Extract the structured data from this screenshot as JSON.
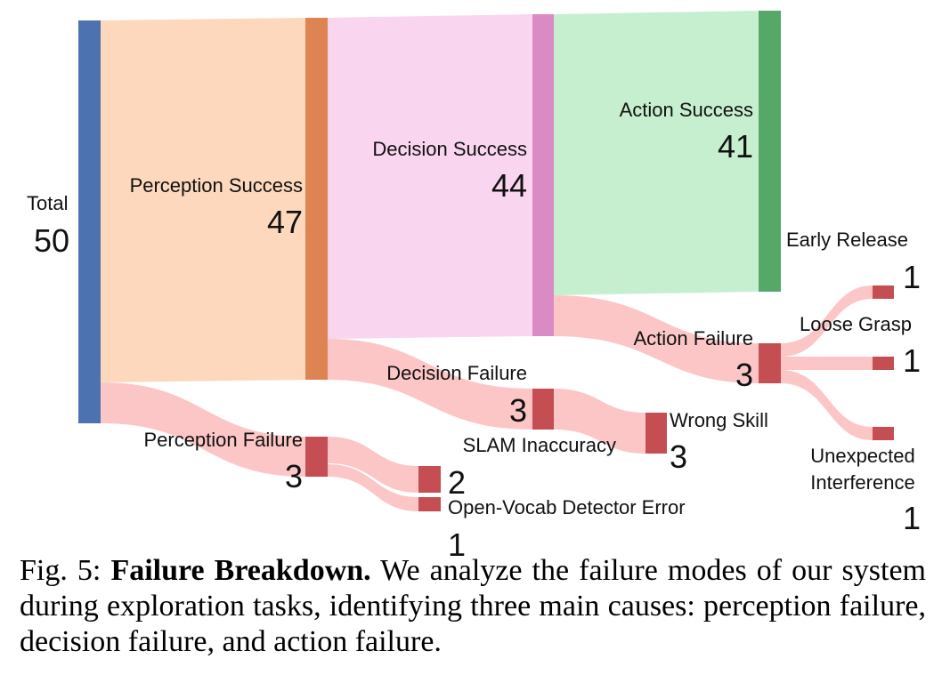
{
  "colors": {
    "total": "#4c72b0",
    "perception_success": "#dd8452",
    "decision_success": "#da8bc3",
    "action_success": "#55a868",
    "failure": "#c44e52",
    "flow_perception": "#fdd8bd",
    "flow_decision": "#f9d5f0",
    "flow_action": "#c6efcf",
    "flow_failure": "#fcc6c7"
  },
  "nodes": {
    "total": {
      "label": "Total",
      "value": "50"
    },
    "perception_success": {
      "label": "Perception Success",
      "value": "47"
    },
    "decision_success": {
      "label": "Decision Success",
      "value": "44"
    },
    "action_success": {
      "label": "Action Success",
      "value": "41"
    },
    "perception_failure": {
      "label": "Perception Failure",
      "value": "3"
    },
    "decision_failure": {
      "label": "Decision Failure",
      "value": "3"
    },
    "action_failure": {
      "label": "Action Failure",
      "value": "3"
    },
    "slam_inaccuracy": {
      "label": "SLAM Inaccuracy",
      "value": "2"
    },
    "open_vocab_error": {
      "label": "Open-Vocab Detector Error",
      "value": "1"
    },
    "wrong_skill": {
      "label": "Wrong Skill",
      "value": "3"
    },
    "early_release": {
      "label": "Early Release",
      "value": "1"
    },
    "loose_grasp": {
      "label": "Loose Grasp",
      "value": "1"
    },
    "unexpected_interference": {
      "label_line1": "Unexpected",
      "label_line2": "Interference",
      "value": "1"
    }
  },
  "caption": {
    "prefix": "Fig. 5: ",
    "bold": "Failure Breakdown.",
    "text": " We analyze the failure modes of our system during exploration tasks, identifying three main causes: perception failure, decision failure, and action failure."
  }
}
